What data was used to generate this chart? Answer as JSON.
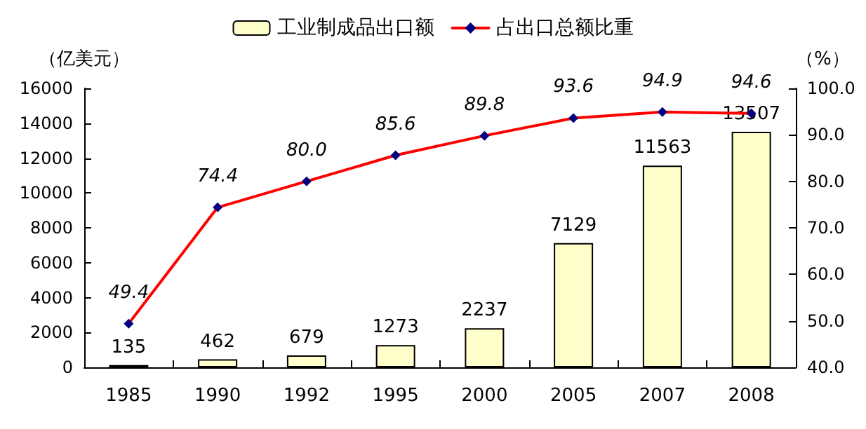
{
  "chart_data": {
    "type": "bar",
    "categories": [
      "1985",
      "1990",
      "1992",
      "1995",
      "2000",
      "2005",
      "2007",
      "2008"
    ],
    "ylabel": "（亿美元）",
    "y2label": "（%）",
    "series": [
      {
        "name": "工业制成品出口额",
        "color": "#ffffcc",
        "values": [
          135,
          462,
          679,
          1273,
          2237,
          7129,
          11563,
          13507
        ],
        "value_labels": [
          "135",
          "462",
          "679",
          "1273",
          "2237",
          "7129",
          "11563",
          "13507"
        ]
      },
      {
        "name": "占出口总额比重",
        "type": "line",
        "axis": "y2",
        "color": "#ff0000",
        "values": [
          49.4,
          74.4,
          80.0,
          85.6,
          89.8,
          93.6,
          94.9,
          94.6
        ],
        "value_labels": [
          "49.4",
          "74.4",
          "80.0",
          "85.6",
          "89.8",
          "93.6",
          "94.9",
          "94.6"
        ]
      }
    ],
    "ylim": [
      0,
      16000
    ],
    "yticks": [
      0,
      2000,
      4000,
      6000,
      8000,
      10000,
      12000,
      14000,
      16000
    ],
    "y2lim": [
      40,
      100
    ],
    "y2ticks": [
      {
        "value": 40,
        "label": "40.0"
      },
      {
        "value": 50,
        "label": "50.0"
      },
      {
        "value": 60,
        "label": "60.0"
      },
      {
        "value": 70,
        "label": "70.0"
      },
      {
        "value": 80,
        "label": "80.0"
      },
      {
        "value": 90,
        "label": "90.0"
      },
      {
        "value": 100,
        "label": "100.0"
      }
    ],
    "legend": "top",
    "grid": false,
    "marker": "diamond",
    "line_style": "solid"
  }
}
